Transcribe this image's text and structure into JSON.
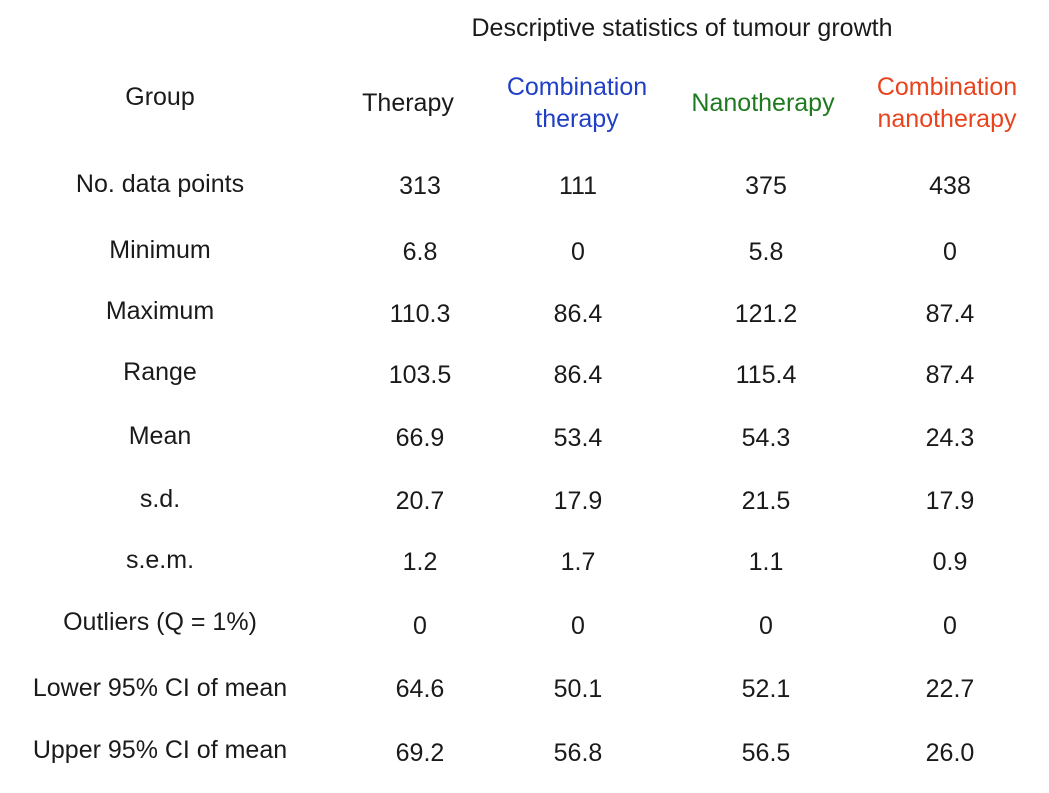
{
  "title": "Descriptive statistics of tumour growth",
  "colors": {
    "combination_therapy": "#1f3fc4",
    "nanotherapy": "#1e7a1e",
    "combination_nanotherapy": "#e8431d"
  },
  "header": {
    "group": "Group",
    "columns": [
      {
        "line1": "Therapy",
        "line2": ""
      },
      {
        "line1": "Combination",
        "line2": "therapy"
      },
      {
        "line1": "Nanotherapy",
        "line2": ""
      },
      {
        "line1": "Combination",
        "line2": "nanotherapy"
      }
    ]
  },
  "rows": [
    {
      "label": "No. data points",
      "values": [
        "313",
        "111",
        "375",
        "438"
      ]
    },
    {
      "label": "Minimum",
      "values": [
        "6.8",
        "0",
        "5.8",
        "0"
      ]
    },
    {
      "label": "Maximum",
      "values": [
        "110.3",
        "86.4",
        "121.2",
        "87.4"
      ]
    },
    {
      "label": "Range",
      "values": [
        "103.5",
        "86.4",
        "115.4",
        "87.4"
      ]
    },
    {
      "label": "Mean",
      "values": [
        "66.9",
        "53.4",
        "54.3",
        "24.3"
      ]
    },
    {
      "label": "s.d.",
      "values": [
        "20.7",
        "17.9",
        "21.5",
        "17.9"
      ]
    },
    {
      "label": "s.e.m.",
      "values": [
        "1.2",
        "1.7",
        "1.1",
        "0.9"
      ]
    },
    {
      "label": "Outliers (Q = 1%)",
      "values": [
        "0",
        "0",
        "0",
        "0"
      ]
    },
    {
      "label": "Lower 95% CI of mean",
      "values": [
        "64.6",
        "50.1",
        "52.1",
        "22.7"
      ]
    },
    {
      "label": "Upper 95% CI of mean",
      "values": [
        "69.2",
        "56.8",
        "56.5",
        "26.0"
      ]
    }
  ]
}
